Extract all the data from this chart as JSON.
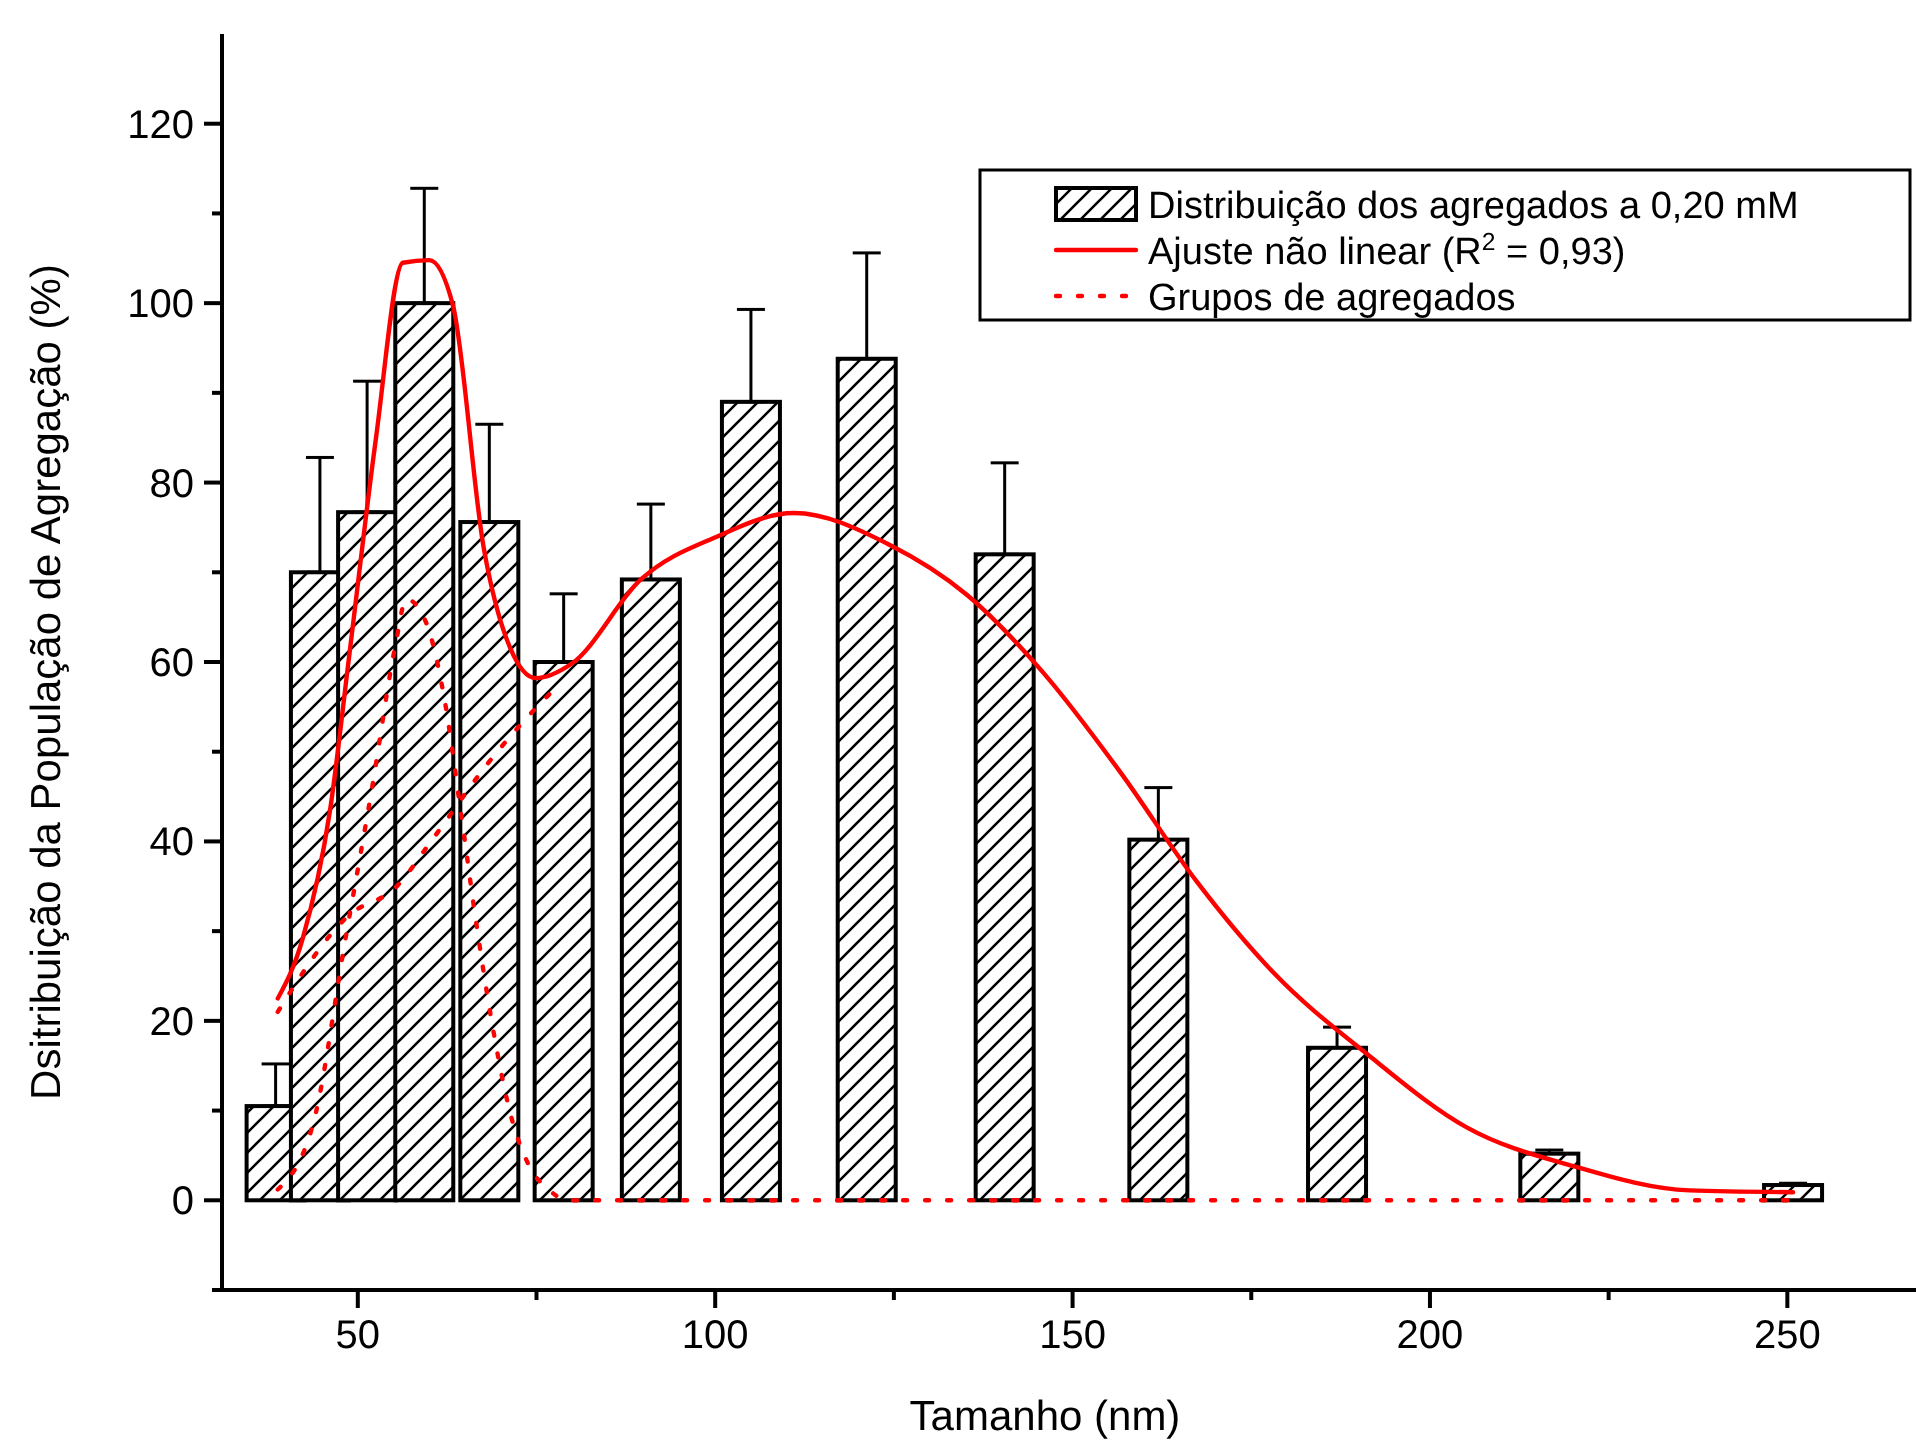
{
  "chart_data": {
    "type": "bar",
    "xlabel": "Tamanho (nm)",
    "ylabel": "Dsitribuição da População de Agregação (%)",
    "xlim": [
      31,
      268
    ],
    "ylim": [
      -10,
      130
    ],
    "xticks": [
      50,
      {
        "value": 75,
        "label": null
      },
      100,
      {
        "value": 125,
        "label": null
      },
      150,
      {
        "value": 175,
        "label": null
      },
      200,
      {
        "value": 225,
        "label": null
      },
      250
    ],
    "yticks": [
      {
        "value": -10,
        "label": null
      },
      0,
      {
        "value": 10,
        "label": null
      },
      20,
      {
        "value": 30,
        "label": null
      },
      40,
      {
        "value": 50,
        "label": null
      },
      60,
      {
        "value": 70,
        "label": null
      },
      80,
      {
        "value": 90,
        "label": null
      },
      100,
      {
        "value": 110,
        "label": null
      },
      120
    ],
    "grid": false,
    "legend": "top right",
    "marker": "none",
    "series": [
      {
        "name": "Distribuição dos agregados a 0,20 mM",
        "color": "#000000",
        "x": [
          38.5,
          44.7,
          51.3,
          59.3,
          68.4,
          78.8,
          91,
          105,
          121.2,
          140.5,
          162,
          187,
          216.7,
          250.8
        ],
        "values": [
          10.5,
          70,
          76.7,
          100,
          75.6,
          60,
          69.2,
          89,
          93.8,
          72,
          40.2,
          17,
          5.2,
          1.7
        ],
        "errors": [
          [
            10.5,
            15.2
          ],
          [
            70,
            82.8
          ],
          [
            76.7,
            91.3
          ],
          [
            100,
            112.8
          ],
          [
            75.6,
            86.5
          ],
          [
            60,
            67.6
          ],
          [
            69.2,
            77.6
          ],
          [
            89,
            99.3
          ],
          [
            93.8,
            105.6
          ],
          [
            72,
            82.2
          ],
          [
            40.2,
            46
          ],
          [
            17,
            19.3
          ],
          [
            5.2,
            5.6
          ],
          [
            1.7,
            1.9
          ]
        ]
      },
      {
        "name": "Ajuste não linear (R$^{2}$ = 0,93)",
        "type": "line",
        "line_style": "solid",
        "color": "#ff0000",
        "x": [
          38.8,
          42.3,
          46.1,
          48.8,
          52.5,
          56.3,
          60,
          63.3,
          67.6,
          71.3,
          74.9,
          79.9,
          89.6,
          100.3,
          111,
          124.3,
          135.2,
          145.8,
          156.7,
          167.3,
          178.2,
          191.2,
          205.2,
          220.1,
          236.3,
          250.8
        ],
        "values": [
          22.5,
          29.2,
          43.4,
          60.7,
          84.7,
          104.5,
          104.8,
          99.8,
          72.8,
          61.6,
          58.2,
          59.8,
          69.2,
          74,
          76.6,
          73.1,
          67.5,
          58.9,
          47.7,
          35.6,
          25.3,
          16.3,
          8.1,
          3.8,
          1.1,
          0.9
        ]
      },
      {
        "name": "Grupos de agregados",
        "type": "line",
        "line_style": "dotted",
        "color": "#ff0000",
        "x": [
          38.8,
          43.9,
          48.2,
          52,
          55.2,
          56.8,
          59.5,
          62.2,
          64.4,
          66.5,
          68.7,
          71.3,
          74,
          76.7,
          79.3,
          250.8
        ],
        "values": [
          1.2,
          9,
          28.8,
          46,
          61.6,
          67,
          64.5,
          55.5,
          43.4,
          31.3,
          20.1,
          9.8,
          3.8,
          1.2,
          0,
          0
        ]
      },
      {
        "type": "line",
        "line_style": "dotted",
        "color": "#ff0000",
        "x": [
          38.8,
          48.8,
          55.2,
          60.6,
          68.1,
          74.6,
          77.8
        ],
        "values": [
          21,
          31.8,
          34.8,
          40.4,
          48.6,
          54.6,
          57.2
        ]
      }
    ]
  }
}
